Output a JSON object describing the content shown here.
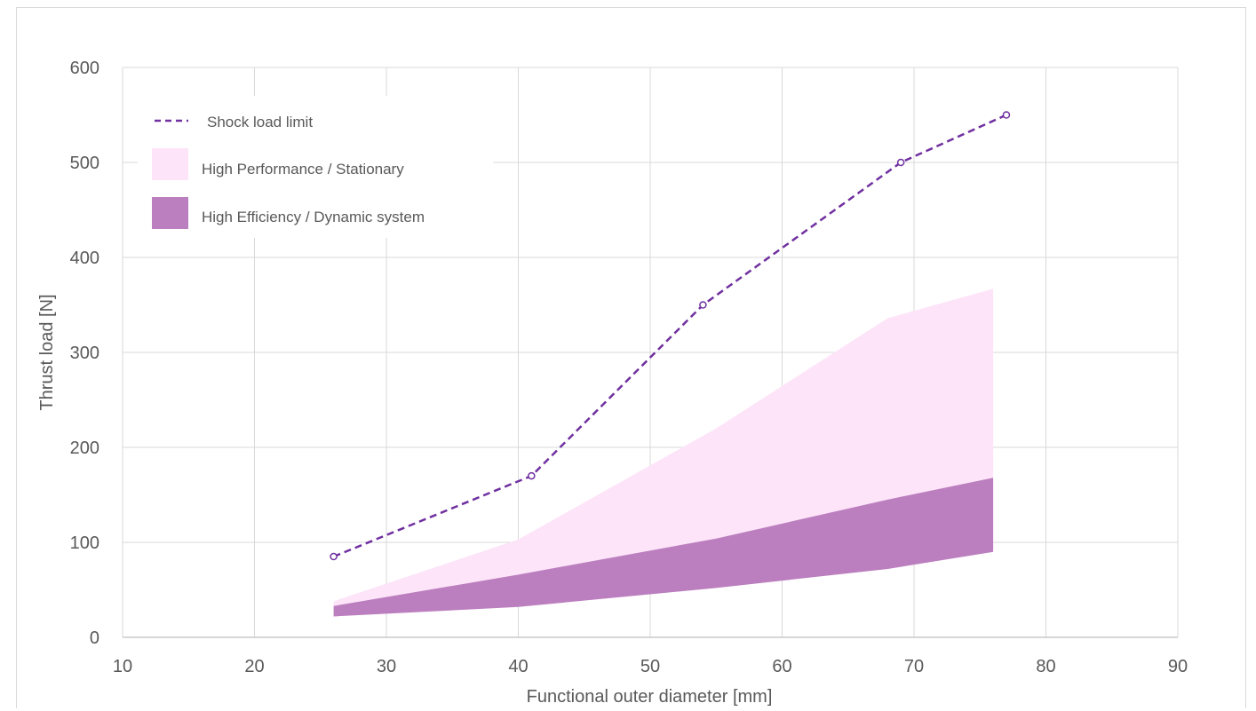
{
  "chart_data": {
    "type": "area",
    "xlabel": "Functional outer diameter [mm]",
    "ylabel": "Thrust load [N]",
    "xlim": [
      10,
      90
    ],
    "ylim": [
      0,
      600
    ],
    "xticks": [
      10,
      20,
      30,
      40,
      50,
      60,
      70,
      80,
      90
    ],
    "yticks": [
      0,
      100,
      200,
      300,
      400,
      500,
      600
    ],
    "grid": true,
    "legend_position": "top-left",
    "series": [
      {
        "name": "Shock load limit",
        "kind": "line",
        "style": "dashed",
        "color": "#7030a0",
        "x": [
          26,
          41,
          54,
          69,
          77
        ],
        "y": [
          85,
          170,
          350,
          500,
          550
        ]
      },
      {
        "name": "High Performance / Stationary",
        "kind": "band",
        "color": "#fde4f8",
        "x": [
          26,
          40,
          55,
          68,
          76
        ],
        "upper": [
          38,
          103,
          220,
          336,
          367
        ],
        "lower": [
          22,
          32,
          52,
          72,
          90
        ]
      },
      {
        "name": "High Efficiency / Dynamic system",
        "kind": "band",
        "color": "#bb7fbf",
        "x": [
          26,
          40,
          55,
          68,
          76
        ],
        "upper": [
          33,
          66,
          104,
          145,
          168
        ],
        "lower": [
          22,
          32,
          52,
          72,
          90
        ]
      }
    ]
  }
}
